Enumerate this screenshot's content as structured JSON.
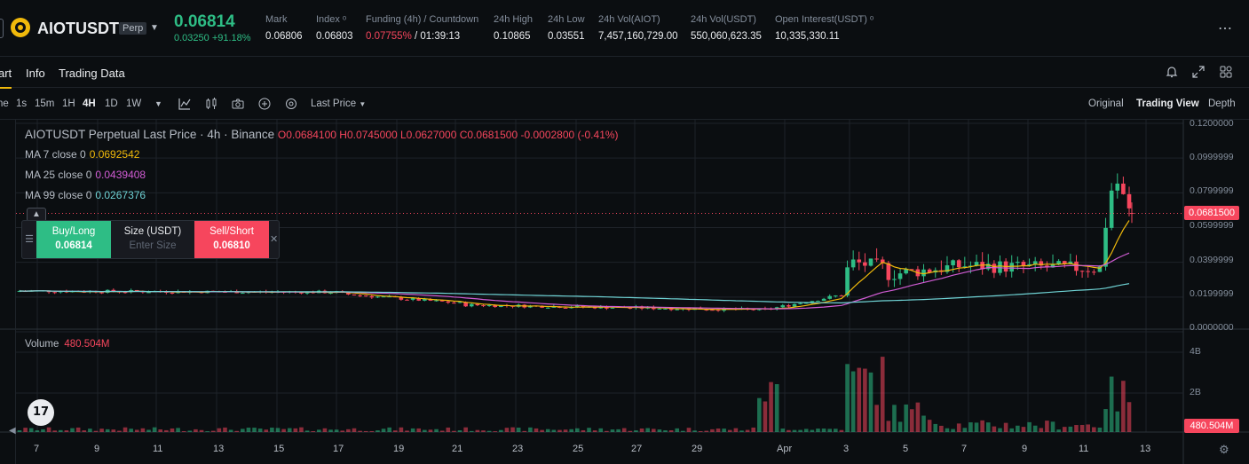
{
  "header": {
    "symbol": "AIOTUSDT",
    "badge": "Perp",
    "last_price": "0.06814",
    "change": "0.03250 +91.18%",
    "stats": [
      {
        "label": "Mark",
        "value": "0.06806"
      },
      {
        "label": "Index ᵒ",
        "value": "0.06803"
      },
      {
        "label": "Funding (4h) / Countdown",
        "value_red": "0.07755%",
        "value": " / 01:39:13"
      },
      {
        "label": "24h High",
        "value": "0.10865"
      },
      {
        "label": "24h Low",
        "value": "0.03551"
      },
      {
        "label": "24h Vol(AIOT)",
        "value": "7,457,160,729.00"
      },
      {
        "label": "24h Vol(USDT)",
        "value": "550,060,623.35"
      },
      {
        "label": "Open Interest(USDT) ᵒ",
        "value": "10,335,330.11"
      }
    ],
    "more_icon": "⋯"
  },
  "tabs": [
    "art",
    "Info",
    "Trading Data"
  ],
  "toolbar": {
    "left_label": "ne",
    "intervals": [
      "1s",
      "15m",
      "1H",
      "4H",
      "1D",
      "1W"
    ],
    "active_interval": "4H",
    "price_type": "Last Price",
    "views": [
      "Original",
      "Trading View",
      "Depth"
    ],
    "active_view": "Trading View"
  },
  "chart_legend": {
    "title": "AIOTUSDT Perpetual Last Price · 4h · Binance",
    "ohlc": "O0.0684100 H0.0745000 L0.0627000 C0.0681500 -0.0002800 (-0.41%)",
    "ma": [
      {
        "label": "MA 7 close 0",
        "value": "0.0692542",
        "color": "#f0b90b"
      },
      {
        "label": "MA 25 close 0",
        "value": "0.0439408",
        "color": "#d15cd4"
      },
      {
        "label": "MA 99 close 0",
        "value": "0.0267376",
        "color": "#6fd3d5"
      }
    ],
    "volume_label": "Volume",
    "volume_value": "480.504M"
  },
  "trade_panel": {
    "buy_label": "Buy/Long",
    "buy_price": "0.06814",
    "size_label": "Size (USDT)",
    "size_placeholder": "Enter Size",
    "sell_label": "Sell/Short",
    "sell_price": "0.06810"
  },
  "price_axis": [
    "0.1200000",
    "0.0999999",
    "0.0799999",
    "0.0599999",
    "0.0399999",
    "0.0199999",
    "0.0000000"
  ],
  "current_price_tag": "0.0681500",
  "volume_axis": [
    "4B",
    "2B"
  ],
  "volume_tag": "480.504M",
  "time_axis": [
    "7",
    "9",
    "11",
    "13",
    "15",
    "17",
    "19",
    "21",
    "23",
    "25",
    "27",
    "29",
    "Apr",
    "3",
    "5",
    "7",
    "9",
    "11",
    "13"
  ],
  "tv_logo": "17",
  "colors": {
    "up": "#2ebd85",
    "down": "#f6465d",
    "accent": "#f0b90b"
  },
  "chart_data": {
    "type": "candlestick",
    "x_axis_labels": [
      "7",
      "9",
      "11",
      "13",
      "15",
      "17",
      "19",
      "21",
      "23",
      "25",
      "27",
      "29",
      "Apr",
      "3",
      "5",
      "7",
      "9",
      "11",
      "13"
    ],
    "y_range": [
      0,
      0.12
    ],
    "approx_close_path": [
      0.024,
      0.025,
      0.023,
      0.022,
      0.022,
      0.022,
      0.018,
      0.016,
      0.015,
      0.015,
      0.014,
      0.012,
      0.014,
      0.03,
      0.04,
      0.036,
      0.04,
      0.037,
      0.036,
      0.09,
      0.068
    ],
    "last": {
      "open": 0.06841,
      "high": 0.0745,
      "low": 0.0627,
      "close": 0.06815
    }
  }
}
